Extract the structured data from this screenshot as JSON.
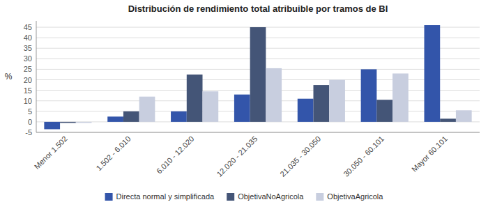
{
  "chart_data": {
    "type": "bar",
    "title": "Distribución de rendimiento total atribuible por tramos de BI",
    "ylabel": "%",
    "categories": [
      "Menor 1.502",
      "1.502 - 6.010",
      "6.010 - 12.020",
      "12.020 - 21.035",
      "21.035 - 30.050",
      "30.050 - 60.101",
      "Mayor 60.101"
    ],
    "series": [
      {
        "name": "Directa normal y simplificada",
        "color": "#3355AA",
        "values": [
          -3.5,
          2.5,
          5.0,
          13.0,
          11.0,
          25.0,
          46.0
        ]
      },
      {
        "name": "ObjetivaNoAgricola",
        "color": "#445577",
        "values": [
          -0.5,
          5.0,
          22.5,
          45.0,
          17.5,
          10.5,
          1.5
        ]
      },
      {
        "name": "ObjetivaAgricola",
        "color": "#C8CEDF",
        "values": [
          -0.5,
          12.0,
          14.5,
          25.5,
          20.0,
          23.0,
          5.5
        ]
      }
    ],
    "ylim": [
      -5,
      48
    ],
    "yticks": [
      -5,
      0,
      5,
      10,
      15,
      20,
      25,
      30,
      35,
      40,
      45
    ],
    "grid": true,
    "legend": "bottom"
  }
}
